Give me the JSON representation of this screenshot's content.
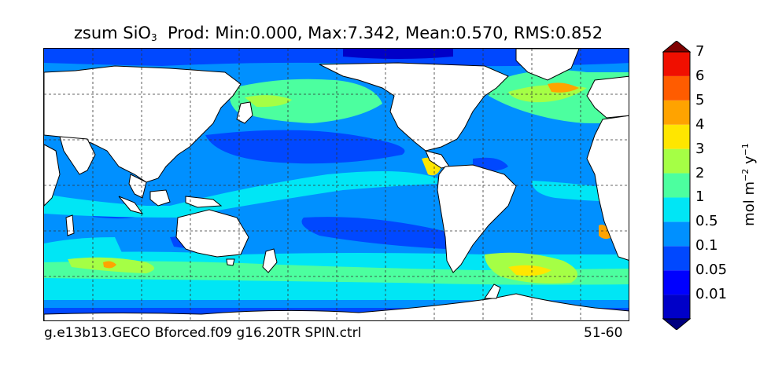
{
  "title": {
    "field": "zsum SiO",
    "subscript": "3",
    "stats": "Prod: Min:0.000, Max:7.342, Mean:0.570, RMS:0.852"
  },
  "footer": {
    "case_name": "g.e13b13.GECO Bforced.f09 g16.20TR SPIN.ctrl",
    "years": "51-60"
  },
  "colorbar": {
    "unit_main": "mol m",
    "unit_exp1": "−2",
    "unit_mid": " y",
    "unit_exp2": "−1",
    "levels": [
      "0.01",
      "0.05",
      "0.1",
      "0.5",
      "1",
      "2",
      "3",
      "4",
      "5",
      "6",
      "7"
    ],
    "colors": [
      "#00007f",
      "#0000c8",
      "#0000ff",
      "#0048ff",
      "#0090ff",
      "#00e6f5",
      "#4cff9f",
      "#a5ff45",
      "#ffe600",
      "#ffa300",
      "#ff5c00",
      "#f00f00",
      "#7f0000"
    ]
  },
  "map": {
    "projection": "global equidistant cylindrical, Pacific-centred",
    "grid": "dashed graticule",
    "land_color": "#ffffff",
    "ocean_default_color": "#0090ff"
  }
}
